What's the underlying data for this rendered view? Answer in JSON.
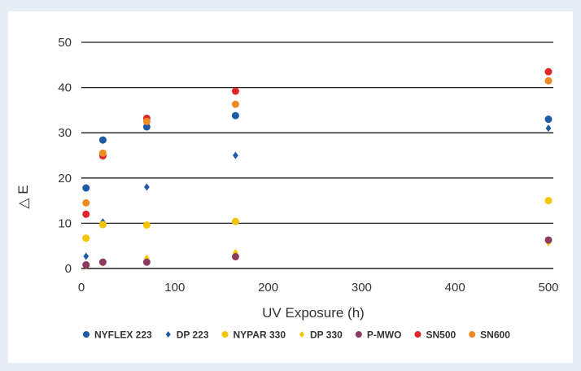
{
  "chart_data": {
    "type": "scatter",
    "xlabel": "UV Exposure (h)",
    "ylabel": "△ E",
    "xlim": [
      0,
      500
    ],
    "ylim": [
      0,
      50
    ],
    "xticks": [
      0,
      100,
      200,
      300,
      400,
      500
    ],
    "yticks": [
      0,
      10,
      20,
      30,
      40,
      50
    ],
    "grid": "horizontal",
    "legend_position": "bottom",
    "series": [
      {
        "name": "NYFLEX 223",
        "color": "#1f5aa6",
        "marker": "circle",
        "points": [
          [
            5,
            17.8
          ],
          [
            23,
            28.4
          ],
          [
            70,
            31.3
          ],
          [
            165,
            33.8
          ],
          [
            500,
            33.0
          ]
        ]
      },
      {
        "name": "DP 223",
        "color": "#1f5aa6",
        "marker": "diamond",
        "points": [
          [
            5,
            2.7
          ],
          [
            23,
            10.3
          ],
          [
            70,
            18.0
          ],
          [
            165,
            25.0
          ],
          [
            500,
            31.0
          ]
        ]
      },
      {
        "name": "NYPAR 330",
        "color": "#f5c400",
        "marker": "circle",
        "points": [
          [
            5,
            6.7
          ],
          [
            23,
            9.7
          ],
          [
            70,
            9.6
          ],
          [
            165,
            10.4
          ],
          [
            500,
            15.0
          ]
        ]
      },
      {
        "name": "DP 330",
        "color": "#f5c400",
        "marker": "diamond",
        "points": [
          [
            5,
            0.6
          ],
          [
            23,
            1.2
          ],
          [
            70,
            2.3
          ],
          [
            165,
            3.5
          ],
          [
            500,
            5.7
          ]
        ]
      },
      {
        "name": "P-MWO",
        "color": "#8c3a5e",
        "marker": "circle",
        "points": [
          [
            5,
            0.8
          ],
          [
            23,
            1.4
          ],
          [
            70,
            1.4
          ],
          [
            165,
            2.6
          ],
          [
            500,
            6.3
          ]
        ]
      },
      {
        "name": "SN500",
        "color": "#e0262b",
        "marker": "circle",
        "points": [
          [
            5,
            12.0
          ],
          [
            23,
            24.9
          ],
          [
            70,
            33.2
          ],
          [
            165,
            39.2
          ],
          [
            500,
            43.5
          ]
        ]
      },
      {
        "name": "SN600",
        "color": "#ef8a23",
        "marker": "circle",
        "points": [
          [
            5,
            14.5
          ],
          [
            23,
            25.5
          ],
          [
            70,
            32.5
          ],
          [
            165,
            36.3
          ],
          [
            500,
            41.5
          ]
        ]
      }
    ]
  }
}
